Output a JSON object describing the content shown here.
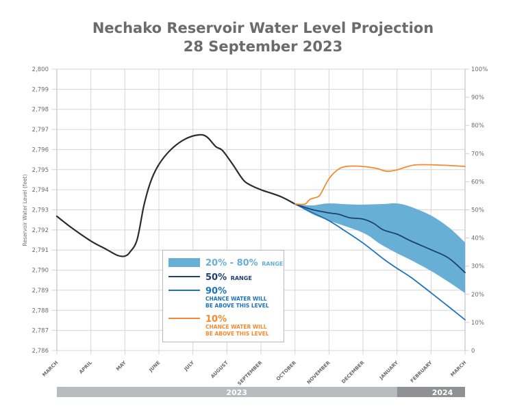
{
  "chart_data": {
    "type": "line",
    "title": "Nechako Reservoir Water Level Projection",
    "subtitle": "28 September 2023",
    "ylabel": "Reservoir Water Level (feet)",
    "ylim": [
      2786,
      2800
    ],
    "yticks": [
      "2,786",
      "2,787",
      "2,788",
      "2,789",
      "2,790",
      "2,791",
      "2,792",
      "2,793",
      "2,794",
      "2,795",
      "2,796",
      "2,797",
      "2,798",
      "2,799",
      "2,800"
    ],
    "y2ticks": [
      "0",
      "10%",
      "20%",
      "30%",
      "40%",
      "50%",
      "60%",
      "70%",
      "80%",
      "90%",
      "100%"
    ],
    "y2lim": [
      0,
      100
    ],
    "x_unit": "months since March 2023",
    "xlim": [
      0,
      12
    ],
    "xticks": [
      "MARCH",
      "APRIL",
      "MAY",
      "JUNE",
      "JULY",
      "AUGUST",
      "SEPTEMBER",
      "OCTOBER",
      "NOVEMBER",
      "DECEMBER",
      "JANUARY",
      "FEBRUARY",
      "MARCH"
    ],
    "years": [
      {
        "label": "2023",
        "from": 0,
        "to": 10
      },
      {
        "label": "2024",
        "from": 10,
        "to": 12
      }
    ],
    "grid": true,
    "legend_position": "bottom-center",
    "series": [
      {
        "name": "Historical",
        "color": "#2b2b2b",
        "x": [
          0,
          0.44,
          1.0,
          1.45,
          1.79,
          2.0,
          2.15,
          2.36,
          2.56,
          2.76,
          3.0,
          3.36,
          3.77,
          4.17,
          4.41,
          4.67,
          4.87,
          5.17,
          5.47,
          5.68,
          6.0,
          6.58,
          7.0
        ],
        "y": [
          2792.68,
          2792.1,
          2791.45,
          2791.04,
          2790.73,
          2790.7,
          2790.9,
          2791.52,
          2793.22,
          2794.41,
          2795.26,
          2796.01,
          2796.52,
          2796.73,
          2796.63,
          2796.15,
          2795.95,
          2795.26,
          2794.51,
          2794.24,
          2794.0,
          2793.66,
          2793.29
        ]
      },
      {
        "name": "20% - 80% RANGE",
        "type": "band",
        "color": "#67afd4",
        "x": [
          7.0,
          7.49,
          7.99,
          8.8,
          9.6,
          10.0,
          10.41,
          11.01,
          11.52,
          12.0
        ],
        "upper": [
          2793.29,
          2793.22,
          2793.32,
          2793.26,
          2793.29,
          2793.32,
          2793.15,
          2792.71,
          2792.13,
          2791.38
        ],
        "x_lower": [
          7.0,
          7.49,
          7.99,
          9.0,
          9.5,
          10.0,
          10.41,
          11.01,
          11.52,
          12.0
        ],
        "lower": [
          2793.29,
          2792.81,
          2792.47,
          2791.86,
          2791.31,
          2790.84,
          2790.5,
          2789.95,
          2789.41,
          2788.86
        ]
      },
      {
        "name": "50% RANGE",
        "color": "#1f3f6e",
        "x": [
          7.0,
          7.49,
          7.99,
          8.29,
          8.6,
          9.0,
          9.3,
          9.6,
          10.0,
          10.41,
          11.01,
          11.52,
          12.0
        ],
        "y": [
          2793.29,
          2793.02,
          2792.85,
          2792.78,
          2792.61,
          2792.54,
          2792.34,
          2792.0,
          2791.79,
          2791.45,
          2791.01,
          2790.6,
          2789.88
        ]
      },
      {
        "name": "90% CHANCE WATER WILL BE ABOVE THIS LEVEL",
        "color": "#1a73bf",
        "x": [
          7.0,
          7.49,
          7.99,
          8.4,
          9.0,
          9.6,
          10.0,
          10.41,
          11.01,
          11.52,
          12.0
        ],
        "y": [
          2793.29,
          2792.88,
          2792.47,
          2792.03,
          2791.35,
          2790.56,
          2790.09,
          2789.64,
          2788.86,
          2788.18,
          2787.53
        ]
      },
      {
        "name": "10% CHANCE WATER WILL BE ABOVE THIS LEVEL",
        "color": "#f58a2e",
        "x": [
          7.0,
          7.29,
          7.45,
          7.69,
          7.79,
          7.99,
          8.23,
          8.5,
          9.0,
          9.4,
          9.7,
          10.0,
          10.51,
          11.21,
          12.0
        ],
        "y": [
          2793.29,
          2793.29,
          2793.53,
          2793.66,
          2793.9,
          2794.52,
          2794.96,
          2795.16,
          2795.16,
          2795.06,
          2794.92,
          2794.99,
          2795.23,
          2795.23,
          2795.16
        ]
      }
    ],
    "legend": [
      {
        "key": "band",
        "big": "20% - 80%",
        "small": "RANGE",
        "color": "#67afd4"
      },
      {
        "key": "p50",
        "big": "50%",
        "small": "RANGE",
        "color": "#1f3f6e"
      },
      {
        "key": "p90",
        "big": "90%",
        "sub1": "CHANCE WATER WILL",
        "sub2": "BE ABOVE THIS LEVEL",
        "color": "#1a73bf"
      },
      {
        "key": "p10",
        "big": "10%",
        "sub1": "CHANCE WATER WILL",
        "sub2": "BE ABOVE THIS LEVEL",
        "color": "#f58a2e"
      }
    ]
  }
}
